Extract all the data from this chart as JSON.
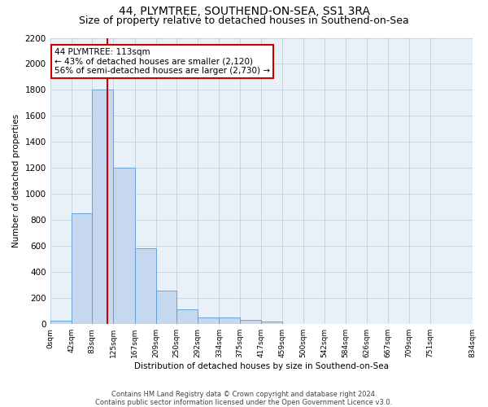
{
  "title": "44, PLYMTREE, SOUTHEND-ON-SEA, SS1 3RA",
  "subtitle": "Size of property relative to detached houses in Southend-on-Sea",
  "xlabel": "Distribution of detached houses by size in Southend-on-Sea",
  "ylabel": "Number of detached properties",
  "footer_line1": "Contains HM Land Registry data © Crown copyright and database right 2024.",
  "footer_line2": "Contains public sector information licensed under the Open Government Licence v3.0.",
  "bar_values": [
    25,
    850,
    1800,
    1200,
    585,
    260,
    115,
    50,
    50,
    30,
    20,
    0,
    0,
    0,
    0,
    0,
    0,
    0,
    0
  ],
  "bin_edges": [
    0,
    42,
    83,
    125,
    167,
    209,
    250,
    292,
    334,
    375,
    417,
    459,
    500,
    542,
    584,
    626,
    667,
    709,
    751,
    834
  ],
  "bin_labels": [
    "0sqm",
    "42sqm",
    "83sqm",
    "125sqm",
    "167sqm",
    "209sqm",
    "250sqm",
    "292sqm",
    "334sqm",
    "375sqm",
    "417sqm",
    "459sqm",
    "500sqm",
    "542sqm",
    "584sqm",
    "626sqm",
    "667sqm",
    "709sqm",
    "751sqm",
    "834sqm"
  ],
  "bar_color": "#c5d8f0",
  "bar_edge_color": "#5b9bd5",
  "red_line_x": 113,
  "annotation_line1": "44 PLYMTREE: 113sqm",
  "annotation_line2": "← 43% of detached houses are smaller (2,120)",
  "annotation_line3": "56% of semi-detached houses are larger (2,730) →",
  "annotation_box_color": "#ffffff",
  "annotation_box_edge": "#cc0000",
  "red_line_color": "#cc0000",
  "ylim": [
    0,
    2200
  ],
  "yticks": [
    0,
    200,
    400,
    600,
    800,
    1000,
    1200,
    1400,
    1600,
    1800,
    2000,
    2200
  ],
  "grid_color": "#c0cfe0",
  "background_color": "#e8f0f8",
  "title_fontsize": 10,
  "subtitle_fontsize": 9,
  "axis_fontsize": 7.5,
  "xtick_fontsize": 6.5,
  "ytick_fontsize": 7.5,
  "annotation_fontsize": 7.5,
  "footer_fontsize": 6
}
